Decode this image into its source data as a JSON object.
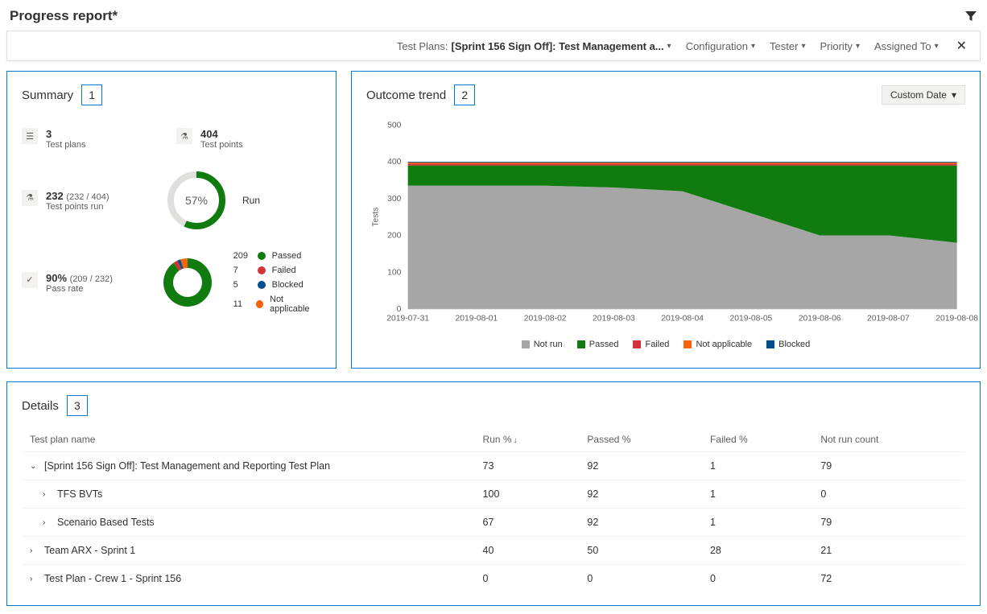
{
  "page_title": "Progress report*",
  "filter_bar": {
    "test_plans_label": "Test Plans:",
    "test_plans_value": "[Sprint 156 Sign Off]: Test Management a...",
    "filters": [
      "Configuration",
      "Tester",
      "Priority",
      "Assigned To"
    ]
  },
  "summary": {
    "title": "Summary",
    "badge": "1",
    "stats": {
      "test_plans": {
        "value": "3",
        "label": "Test plans"
      },
      "test_points": {
        "value": "404",
        "label": "Test points"
      },
      "points_run": {
        "value": "232",
        "detail": "(232 / 404)",
        "label": "Test points run"
      },
      "pass_rate": {
        "value": "90%",
        "detail": "(209 / 232)",
        "label": "Pass rate"
      }
    },
    "run_gauge": {
      "percent": 57,
      "display": "57%",
      "label": "Run",
      "track_color": "#e1dfdd",
      "fill_color": "#107c10"
    },
    "outcome_donut": {
      "total": 232,
      "items": [
        {
          "count": 209,
          "label": "Passed",
          "color": "#107c10"
        },
        {
          "count": 7,
          "label": "Failed",
          "color": "#d13438"
        },
        {
          "count": 5,
          "label": "Blocked",
          "color": "#004e8c"
        },
        {
          "count": 11,
          "label": "Not applicable",
          "color": "#f7630c"
        }
      ]
    }
  },
  "trend": {
    "title": "Outcome trend",
    "badge": "2",
    "date_button": "Custom Date",
    "y_axis_title": "Tests",
    "y_max": 500,
    "y_ticks": [
      0,
      100,
      200,
      300,
      400,
      500
    ],
    "dates": [
      "2019-07-31",
      "2019-08-01",
      "2019-08-02",
      "2019-08-03",
      "2019-08-04",
      "2019-08-05",
      "2019-08-06",
      "2019-08-07",
      "2019-08-08"
    ],
    "series": [
      {
        "name": "Not run",
        "color": "#a6a6a6",
        "values": [
          335,
          335,
          335,
          330,
          320,
          260,
          200,
          200,
          180
        ]
      },
      {
        "name": "Passed",
        "color": "#107c10",
        "values": [
          55,
          55,
          55,
          60,
          70,
          130,
          190,
          190,
          210
        ]
      },
      {
        "name": "Failed",
        "color": "#d13438",
        "values": [
          5,
          5,
          5,
          5,
          5,
          5,
          5,
          5,
          5
        ]
      },
      {
        "name": "Not applicable",
        "color": "#f7630c",
        "values": [
          3,
          3,
          3,
          3,
          3,
          3,
          3,
          3,
          3
        ]
      },
      {
        "name": "Blocked",
        "color": "#004e8c",
        "values": [
          2,
          2,
          2,
          2,
          2,
          2,
          2,
          2,
          2
        ]
      }
    ],
    "legend_order": [
      "Not run",
      "Passed",
      "Failed",
      "Not applicable",
      "Blocked"
    ]
  },
  "details": {
    "title": "Details",
    "badge": "3",
    "columns": [
      "Test plan name",
      "Run %",
      "Passed %",
      "Failed %",
      "Not run count"
    ],
    "sort_col": 1,
    "sort_dir": "desc",
    "rows": [
      {
        "indent": 0,
        "expanded": true,
        "name": "[Sprint 156 Sign Off]: Test Management and Reporting Test Plan",
        "run": "73",
        "passed": "92",
        "failed": "1",
        "notrun": "79"
      },
      {
        "indent": 1,
        "expanded": false,
        "name": "TFS BVTs",
        "run": "100",
        "passed": "92",
        "failed": "1",
        "notrun": "0"
      },
      {
        "indent": 1,
        "expanded": false,
        "name": "Scenario Based Tests",
        "run": "67",
        "passed": "92",
        "failed": "1",
        "notrun": "79"
      },
      {
        "indent": 0,
        "expanded": false,
        "name": "Team ARX - Sprint 1",
        "run": "40",
        "passed": "50",
        "failed": "28",
        "notrun": "21"
      },
      {
        "indent": 0,
        "expanded": false,
        "name": "Test Plan - Crew 1 - Sprint 156",
        "run": "0",
        "passed": "0",
        "failed": "0",
        "notrun": "72"
      }
    ]
  },
  "colors": {
    "accent": "#0078d4"
  }
}
